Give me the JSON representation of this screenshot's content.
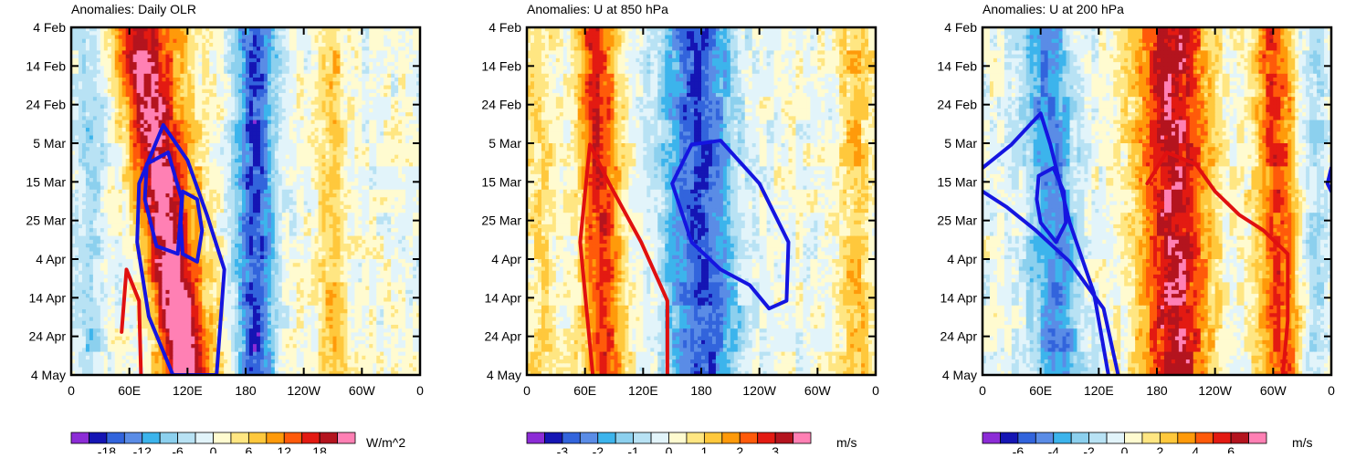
{
  "chart_data": [
    {
      "type": "heatmap",
      "title": "Anomalies: Daily OLR",
      "xlabel": "",
      "ylabel": "",
      "x_ticks": [
        "0",
        "60E",
        "120E",
        "180",
        "120W",
        "60W",
        "0"
      ],
      "y_ticks": [
        "4 Feb",
        "14 Feb",
        "24 Feb",
        "5 Mar",
        "15 Mar",
        "25 Mar",
        "4 Apr",
        "14 Apr",
        "24 Apr",
        "4 May"
      ],
      "xlim": [
        0,
        360
      ],
      "ylim_days": [
        0,
        89
      ],
      "units": "W/m^2",
      "colorbar_labels": [
        "-18",
        "-12",
        "-6",
        "0",
        "6",
        "12",
        "18"
      ],
      "sign": -1,
      "signal_amplitude": 1.55,
      "signal_bands": [
        {
          "lon_start": 65,
          "lon_end": 115,
          "lon_width": 16,
          "amp": 1.0
        },
        {
          "lon_start": 95,
          "lon_end": 125,
          "lon_width": 22,
          "amp": 0.6
        },
        {
          "lon_start": 190,
          "lon_end": 190,
          "lon_width": 14,
          "amp": -1.05
        },
        {
          "lon_start": 270,
          "lon_end": 270,
          "lon_width": 10,
          "amp": 0.45
        },
        {
          "lon_start": 20,
          "lon_end": 20,
          "lon_width": 10,
          "amp": -0.35
        }
      ],
      "contours": [
        {
          "color": "#e01010",
          "points": [
            [
              52,
              78
            ],
            [
              57,
              62
            ],
            [
              70,
              70
            ],
            [
              72,
              89
            ]
          ]
        },
        {
          "color": "#1515e0",
          "points": [
            [
              70,
              40
            ],
            [
              95,
              25
            ],
            [
              120,
              34
            ],
            [
              140,
              48
            ],
            [
              158,
              62
            ],
            [
              150,
              89
            ],
            [
              105,
              89
            ],
            [
              80,
              74
            ],
            [
              68,
              55
            ],
            [
              70,
              40
            ]
          ]
        },
        {
          "color": "#1515e0",
          "points": [
            [
              78,
              35
            ],
            [
              100,
              32
            ],
            [
              114,
              44
            ],
            [
              110,
              58
            ],
            [
              88,
              56
            ],
            [
              76,
              44
            ],
            [
              78,
              35
            ]
          ]
        },
        {
          "color": "#1515e0",
          "points": [
            [
              115,
              42
            ],
            [
              130,
              44
            ],
            [
              135,
              52
            ],
            [
              130,
              60
            ],
            [
              115,
              58
            ],
            [
              113,
              50
            ],
            [
              115,
              42
            ]
          ]
        }
      ]
    },
    {
      "type": "heatmap",
      "title": "Anomalies: U at 850 hPa",
      "xlabel": "",
      "ylabel": "",
      "x_ticks": [
        "0",
        "60E",
        "120E",
        "180",
        "120W",
        "60W",
        "0"
      ],
      "y_ticks": [
        "4 Feb",
        "14 Feb",
        "24 Feb",
        "5 Mar",
        "15 Mar",
        "25 Mar",
        "4 Apr",
        "14 Apr",
        "24 Apr",
        "4 May"
      ],
      "xlim": [
        0,
        360
      ],
      "ylim_days": [
        0,
        89
      ],
      "units": "m/s",
      "colorbar_labels": [
        "-3",
        "-2",
        "-1",
        "0",
        "1",
        "2",
        "3"
      ],
      "sign": 1,
      "signal_amplitude": 1.5,
      "signal_bands": [
        {
          "lon_start": 72,
          "lon_end": 80,
          "lon_width": 15,
          "amp": 1.0
        },
        {
          "lon_start": 175,
          "lon_end": 182,
          "lon_width": 26,
          "amp": -1.05
        },
        {
          "lon_start": 340,
          "lon_end": 340,
          "lon_width": 12,
          "amp": 0.45
        },
        {
          "lon_start": 15,
          "lon_end": 15,
          "lon_width": 10,
          "amp": 0.3
        }
      ],
      "contours": [
        {
          "color": "#e01010",
          "points": [
            [
              68,
              89
            ],
            [
              55,
              55
            ],
            [
              65,
              30
            ],
            [
              85,
              40
            ],
            [
              118,
              55
            ],
            [
              145,
              70
            ],
            [
              145,
              89
            ]
          ]
        },
        {
          "color": "#1515e0",
          "points": [
            [
              150,
              40
            ],
            [
              170,
              30
            ],
            [
              200,
              29
            ],
            [
              240,
              40
            ],
            [
              270,
              55
            ],
            [
              268,
              70
            ],
            [
              250,
              72
            ],
            [
              230,
              66
            ],
            [
              200,
              62
            ],
            [
              170,
              55
            ],
            [
              150,
              40
            ]
          ]
        }
      ]
    },
    {
      "type": "heatmap",
      "title": "Anomalies: U at 200 hPa",
      "xlabel": "",
      "ylabel": "",
      "x_ticks": [
        "0",
        "60E",
        "120E",
        "180",
        "120W",
        "60W",
        "0"
      ],
      "y_ticks": [
        "4 Feb",
        "14 Feb",
        "24 Feb",
        "5 Mar",
        "15 Mar",
        "25 Mar",
        "4 Apr",
        "14 Apr",
        "24 Apr",
        "4 May"
      ],
      "xlim": [
        0,
        360
      ],
      "ylim_days": [
        0,
        89
      ],
      "units": "m/s",
      "colorbar_labels": [
        "-6",
        "-4",
        "-2",
        "0",
        "2",
        "4",
        "6"
      ],
      "sign": 1,
      "signal_amplitude": 1.6,
      "signal_bands": [
        {
          "lon_start": 65,
          "lon_end": 78,
          "lon_width": 18,
          "amp": -0.8
        },
        {
          "lon_start": 195,
          "lon_end": 200,
          "lon_width": 26,
          "amp": 1.15
        },
        {
          "lon_start": 300,
          "lon_end": 310,
          "lon_width": 16,
          "amp": 0.85
        },
        {
          "lon_start": 340,
          "lon_end": 340,
          "lon_width": 10,
          "amp": -0.35
        }
      ],
      "contours": [
        {
          "color": "#1515e0",
          "points": [
            [
              0,
              36
            ],
            [
              30,
              30
            ],
            [
              60,
              22
            ],
            [
              70,
              30
            ],
            [
              90,
              50
            ],
            [
              115,
              68
            ],
            [
              130,
              89
            ]
          ]
        },
        {
          "color": "#1515e0",
          "points": [
            [
              0,
              42
            ],
            [
              25,
              46
            ],
            [
              55,
              52
            ],
            [
              90,
              60
            ],
            [
              125,
              72
            ],
            [
              140,
              89
            ]
          ]
        },
        {
          "color": "#1515e0",
          "points": [
            [
              58,
              38
            ],
            [
              73,
              36
            ],
            [
              84,
              42
            ],
            [
              86,
              50
            ],
            [
              76,
              55
            ],
            [
              60,
              50
            ],
            [
              56,
              44
            ],
            [
              58,
              38
            ]
          ]
        },
        {
          "color": "#e01010",
          "points": [
            [
              170,
              40
            ],
            [
              190,
              32
            ],
            [
              220,
              35
            ],
            [
              240,
              42
            ],
            [
              265,
              48
            ],
            [
              290,
              52
            ],
            [
              315,
              58
            ],
            [
              315,
              75
            ],
            [
              310,
              89
            ]
          ]
        },
        {
          "color": "#1515e0",
          "points": [
            [
              360,
              36
            ],
            [
              356,
              40
            ],
            [
              360,
              42
            ]
          ]
        }
      ]
    }
  ]
}
